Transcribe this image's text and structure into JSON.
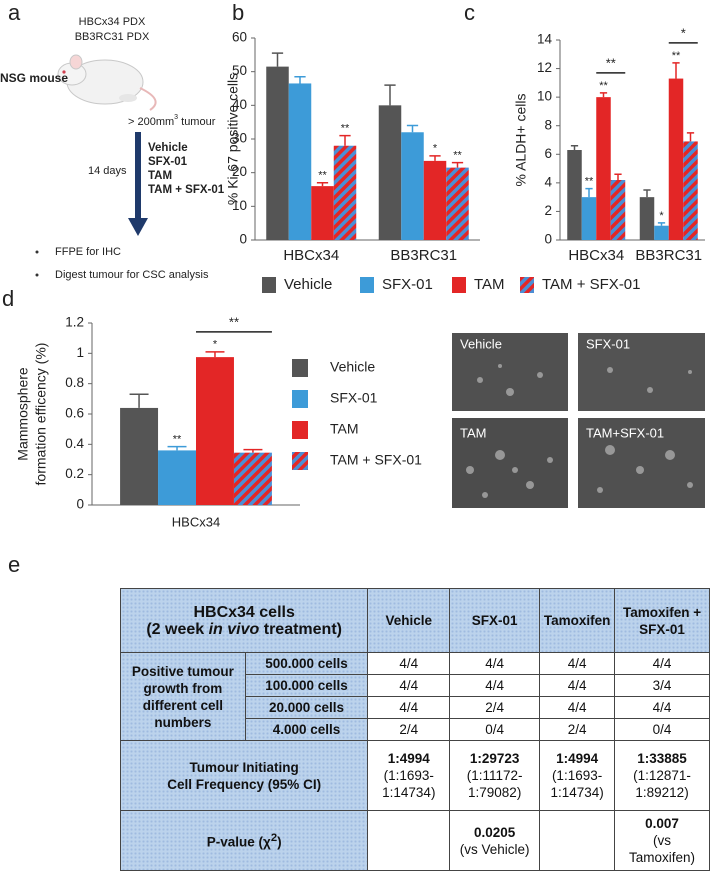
{
  "diagram": {
    "panel": "a",
    "models": [
      "HBCx34 PDX",
      "BB3RC31 PDX"
    ],
    "host": "NSG mouse",
    "tumour_parts": [
      "> 200mm",
      "3",
      " tumour"
    ],
    "duration": "14 days",
    "treatments": [
      "Vehicle",
      "SFX-01",
      "TAM",
      "TAM + SFX-01"
    ],
    "outcomes": [
      "FFPE for IHC",
      "Digest tumour for CSC analysis"
    ]
  },
  "chart_data": [
    {
      "type": "bar",
      "panel": "b",
      "ylabel": "% Ki-67 positive cells",
      "categories": [
        "HBCx34",
        "BB3RC31"
      ],
      "ylim": [
        0,
        60
      ],
      "yticks": [
        0,
        10,
        20,
        30,
        40,
        50,
        60
      ],
      "legend": "below",
      "series": [
        {
          "name": "Vehicle",
          "color": "#555555",
          "values": [
            51.5,
            40
          ],
          "errors": [
            4,
            6
          ],
          "significance": [
            null,
            null
          ]
        },
        {
          "name": "SFX-01",
          "color": "#3d9bd8",
          "values": [
            46.5,
            32
          ],
          "errors": [
            2,
            2
          ],
          "significance": [
            null,
            null
          ]
        },
        {
          "name": "TAM",
          "color": "#e32626",
          "values": [
            16,
            23.5
          ],
          "errors": [
            1,
            1.5
          ],
          "significance": [
            "**",
            "*"
          ]
        },
        {
          "name": "TAM + SFX-01",
          "color": "#e32626",
          "stripe_color": "#4a8fd6",
          "values": [
            28,
            21.5
          ],
          "errors": [
            3,
            1.5
          ],
          "significance": [
            "**",
            "**"
          ]
        }
      ]
    },
    {
      "type": "bar",
      "panel": "c",
      "ylabel": "% ALDH+ cells",
      "categories": [
        "HBCx34",
        "BB3RC31"
      ],
      "ylim": [
        0,
        14
      ],
      "yticks": [
        0,
        2,
        4,
        6,
        8,
        10,
        12,
        14
      ],
      "series": [
        {
          "name": "Vehicle",
          "color": "#555555",
          "values": [
            6.3,
            3.0
          ],
          "errors": [
            0.3,
            0.5
          ],
          "significance": [
            null,
            null
          ]
        },
        {
          "name": "SFX-01",
          "color": "#3d9bd8",
          "values": [
            3.0,
            1.0
          ],
          "errors": [
            0.6,
            0.2
          ],
          "significance": [
            "**",
            "*"
          ]
        },
        {
          "name": "TAM",
          "color": "#e32626",
          "values": [
            10.0,
            11.3
          ],
          "errors": [
            0.3,
            1.1
          ],
          "significance": [
            "**",
            "**"
          ]
        },
        {
          "name": "TAM + SFX-01",
          "color": "#e32626",
          "stripe_color": "#4a8fd6",
          "values": [
            4.2,
            6.9
          ],
          "errors": [
            0.4,
            0.6
          ],
          "significance": [
            null,
            null
          ]
        }
      ],
      "brackets": [
        {
          "text": "**",
          "category": "HBCx34",
          "from": "TAM",
          "to": "TAM + SFX-01"
        },
        {
          "text": "*",
          "category": "BB3RC31",
          "from": "TAM",
          "to": "TAM + SFX-01"
        }
      ]
    },
    {
      "type": "bar",
      "panel": "d",
      "ylabel": [
        "Mammosphere",
        "formation efficency (%)"
      ],
      "categories": [
        "HBCx34"
      ],
      "ylim": [
        0,
        1.2
      ],
      "yticks": [
        0,
        0.2,
        0.4,
        0.6,
        0.8,
        1,
        1.2
      ],
      "legend": "right",
      "series": [
        {
          "name": "Vehicle",
          "color": "#555555",
          "values": [
            0.64
          ],
          "errors": [
            0.09
          ],
          "significance": [
            null
          ]
        },
        {
          "name": "SFX-01",
          "color": "#3d9bd8",
          "values": [
            0.36
          ],
          "errors": [
            0.025
          ],
          "significance": [
            "**"
          ]
        },
        {
          "name": "TAM",
          "color": "#e32626",
          "values": [
            0.975
          ],
          "errors": [
            0.035
          ],
          "significance": [
            "*"
          ]
        },
        {
          "name": "TAM + SFX-01",
          "color": "#e32626",
          "stripe_color": "#4a8fd6",
          "values": [
            0.345
          ],
          "errors": [
            0.02
          ],
          "significance": [
            null
          ]
        }
      ],
      "brackets": [
        {
          "text": "**",
          "category": "HBCx34",
          "from": "TAM",
          "to": "TAM + SFX-01"
        }
      ]
    }
  ],
  "micrographs": [
    "Vehicle",
    "SFX-01",
    "TAM",
    "TAM+SFX-01"
  ],
  "table": {
    "panel": "e",
    "title": "HBCx34 cells",
    "subtitle_parts": [
      "(2 week ",
      "in vivo",
      " treatment)"
    ],
    "columns": [
      "Vehicle",
      "SFX-01",
      "Tamoxifen",
      "Tamoxifen + SFX-01"
    ],
    "growth_label": "Positive tumour growth from different cell numbers",
    "growth_rows": [
      [
        "500.000 cells",
        "4/4",
        "4/4",
        "4/4",
        "4/4"
      ],
      [
        "100.000 cells",
        "4/4",
        "4/4",
        "4/4",
        "3/4"
      ],
      [
        "20.000 cells",
        "4/4",
        "2/4",
        "4/4",
        "4/4"
      ],
      [
        "4.000 cells",
        "2/4",
        "0/4",
        "2/4",
        "0/4"
      ]
    ],
    "tic_label": [
      "Tumour Initiating",
      "Cell Frequency (95% CI)"
    ],
    "tic_values": [
      [
        "1:4994",
        "(1:1693-",
        "1:14734)"
      ],
      [
        "1:29723",
        "(1:11172-",
        "1:79082)"
      ],
      [
        "1:4994",
        "(1:1693-",
        "1:14734)"
      ],
      [
        "1:33885",
        "(1:12871-",
        "1:89212)"
      ]
    ],
    "pvalue_label": [
      "P-value (χ",
      "2",
      ")"
    ],
    "pvalues": [
      null,
      [
        "0.0205",
        "(vs Vehicle)"
      ],
      null,
      [
        "0.007",
        "(vs",
        "Tamoxifen)"
      ]
    ]
  }
}
